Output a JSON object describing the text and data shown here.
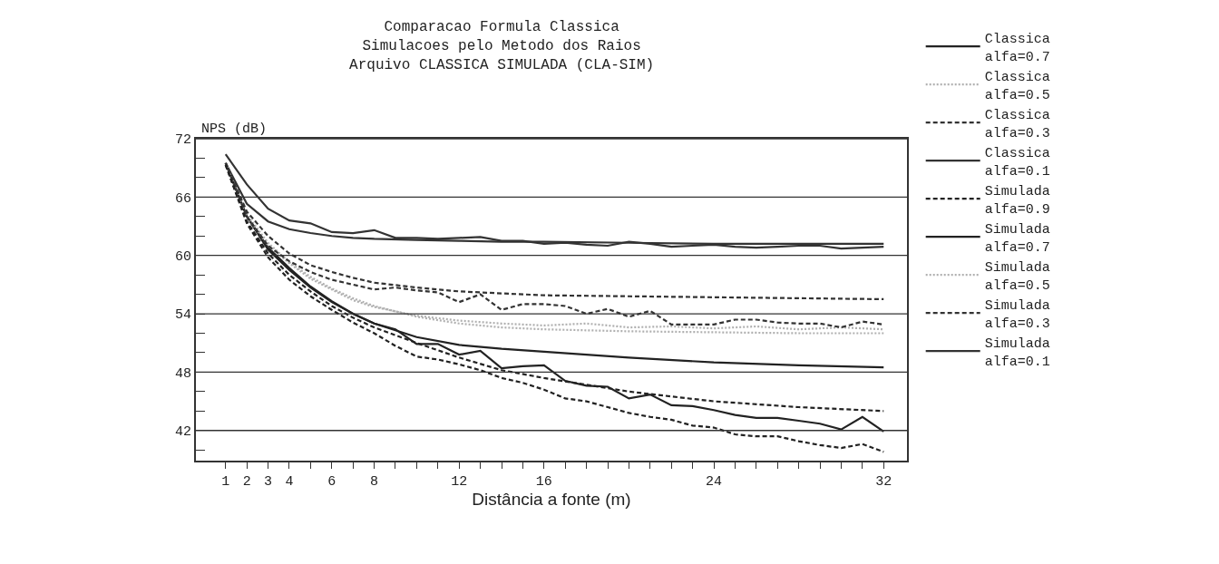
{
  "chart_data": {
    "type": "line",
    "title": "Comparacao Formula Classica\nSimulacoes pelo Metodo dos Raios\nArquivo CLASSICA SIMULADA (CLA-SIM)",
    "xlabel": "Distância a fonte (m)",
    "ylabel": "NPS (dB)",
    "xlim": [
      -0.4,
      33.1
    ],
    "ylim": [
      38.9,
      72
    ],
    "xticks": [
      1,
      2,
      3,
      4,
      {
        "value": 5,
        "label": null
      },
      6,
      {
        "value": 7,
        "label": null
      },
      8,
      {
        "value": 9,
        "label": null
      },
      {
        "value": 10,
        "label": null
      },
      {
        "value": 11,
        "label": null
      },
      12,
      {
        "value": 13,
        "label": null
      },
      {
        "value": 14,
        "label": null
      },
      {
        "value": 15,
        "label": null
      },
      16,
      {
        "value": 17,
        "label": null
      },
      {
        "value": 18,
        "label": null
      },
      {
        "value": 19,
        "label": null
      },
      {
        "value": 20,
        "label": null
      },
      {
        "value": 21,
        "label": null
      },
      {
        "value": 22,
        "label": null
      },
      {
        "value": 23,
        "label": null
      },
      24,
      {
        "value": 25,
        "label": null
      },
      {
        "value": 26,
        "label": null
      },
      {
        "value": 27,
        "label": null
      },
      {
        "value": 28,
        "label": null
      },
      {
        "value": 29,
        "label": null
      },
      {
        "value": 30,
        "label": null
      },
      {
        "value": 31,
        "label": null
      },
      32
    ],
    "yticks": [
      {
        "value": 40,
        "label": null
      },
      42,
      {
        "value": 44,
        "label": null
      },
      {
        "value": 46,
        "label": null
      },
      48,
      {
        "value": 50,
        "label": null
      },
      {
        "value": 52,
        "label": null
      },
      54,
      {
        "value": 56,
        "label": null
      },
      {
        "value": 58,
        "label": null
      },
      60,
      {
        "value": 62,
        "label": null
      },
      {
        "value": 64,
        "label": null
      },
      66,
      {
        "value": 68,
        "label": null
      },
      {
        "value": 70,
        "label": null
      },
      72
    ],
    "grid": "y",
    "legend": "right",
    "marker": "none",
    "series": [
      {
        "name": "Classica\nalfa=0.7",
        "color": "#222222",
        "line_style": "solid",
        "x": [
          1,
          2,
          3,
          4,
          5,
          6,
          7,
          8,
          10,
          12,
          14,
          16,
          20,
          24,
          28,
          32
        ],
        "values": [
          69.5,
          64.0,
          60.8,
          58.7,
          56.8,
          55.3,
          54.0,
          53.0,
          51.6,
          50.8,
          50.4,
          50.1,
          49.5,
          49.0,
          48.7,
          48.5
        ]
      },
      {
        "name": "Classica\nalfa=0.5",
        "color": "#b0b0b0",
        "line_style": "dotted",
        "x": [
          1,
          2,
          3,
          4,
          5,
          6,
          7,
          8,
          10,
          12,
          14,
          16,
          20,
          24,
          28,
          32
        ],
        "values": [
          69.5,
          64.2,
          61.3,
          59.3,
          57.8,
          56.6,
          55.6,
          54.8,
          53.7,
          53.0,
          52.6,
          52.4,
          52.2,
          52.1,
          52.0,
          52.0
        ]
      },
      {
        "name": "Classica\nalfa=0.3",
        "color": "#333333",
        "line_style": "dashed",
        "x": [
          1,
          2,
          3,
          4,
          5,
          6,
          7,
          8,
          10,
          12,
          14,
          16,
          20,
          24,
          28,
          32
        ],
        "values": [
          69.5,
          64.5,
          62.0,
          60.2,
          59.0,
          58.3,
          57.7,
          57.2,
          56.7,
          56.3,
          56.1,
          55.9,
          55.8,
          55.7,
          55.6,
          55.5
        ]
      },
      {
        "name": "Classica\nalfa=0.1",
        "color": "#333333",
        "line_style": "solid",
        "x": [
          1,
          2,
          3,
          4,
          5,
          6,
          7,
          8,
          10,
          12,
          14,
          16,
          20,
          24,
          28,
          32
        ],
        "values": [
          69.5,
          65.3,
          63.5,
          62.7,
          62.3,
          62.0,
          61.8,
          61.7,
          61.6,
          61.5,
          61.4,
          61.4,
          61.3,
          61.2,
          61.2,
          61.2
        ]
      },
      {
        "name": "Simulada\nalfa=0.9",
        "color": "#222222",
        "line_style": "dashed",
        "x": [
          1,
          2,
          3,
          4,
          5,
          6,
          7,
          8,
          9,
          10,
          11,
          12,
          13,
          14,
          15,
          16,
          17,
          18,
          19,
          20,
          21,
          22,
          23,
          24,
          25,
          26,
          27,
          28,
          29,
          30,
          31,
          32
        ],
        "values": [
          69.3,
          63.3,
          59.8,
          57.5,
          55.8,
          54.4,
          53.1,
          52.0,
          50.7,
          49.6,
          49.3,
          48.8,
          48.2,
          47.4,
          46.9,
          46.2,
          45.3,
          45.0,
          44.4,
          43.8,
          43.4,
          43.1,
          42.5,
          42.3,
          41.6,
          41.4,
          41.4,
          40.9,
          40.5,
          40.2,
          40.6,
          39.8
        ]
      },
      {
        "name": "Simulada\nalfa=0.7",
        "color": "#222222",
        "line_style": "solid",
        "x": [
          1,
          2,
          3,
          4,
          5,
          6,
          7,
          8,
          9,
          10,
          11,
          12,
          13,
          14,
          15,
          16,
          17,
          18,
          19,
          20,
          21,
          22,
          23,
          24,
          25,
          26,
          27,
          28,
          29,
          30,
          31,
          32
        ],
        "values": [
          69.5,
          64.0,
          60.6,
          58.5,
          56.7,
          55.2,
          54.0,
          53.0,
          52.4,
          50.9,
          50.9,
          49.8,
          50.2,
          48.4,
          48.6,
          48.7,
          47.1,
          46.6,
          46.5,
          45.3,
          45.7,
          44.6,
          44.5,
          44.1,
          43.6,
          43.3,
          43.3,
          43.0,
          42.7,
          42.1,
          43.4,
          41.9
        ]
      },
      {
        "name": "Simulada\nalfa=0.5",
        "color": "#b0b0b0",
        "line_style": "dotted",
        "x": [
          1,
          2,
          3,
          4,
          5,
          6,
          7,
          8,
          10,
          12,
          14,
          16,
          18,
          20,
          22,
          24,
          26,
          28,
          30,
          32
        ],
        "values": [
          69.5,
          64.0,
          61.0,
          59.2,
          57.6,
          56.5,
          55.4,
          54.7,
          53.8,
          53.3,
          53.0,
          52.8,
          53.0,
          52.6,
          52.7,
          52.5,
          52.7,
          52.4,
          52.6,
          52.4
        ]
      },
      {
        "name": "Simulada\nalfa=0.3",
        "color": "#333333",
        "line_style": "dashed",
        "x": [
          1,
          2,
          3,
          4,
          5,
          6,
          7,
          8,
          9,
          10,
          11,
          12,
          13,
          14,
          15,
          16,
          17,
          18,
          19,
          20,
          21,
          22,
          23,
          24,
          25,
          26,
          27,
          28,
          29,
          30,
          31,
          32
        ],
        "values": [
          69.5,
          64.0,
          61.0,
          59.4,
          58.3,
          57.5,
          57.0,
          56.5,
          56.7,
          56.4,
          56.2,
          55.2,
          56.0,
          54.4,
          55.0,
          55.0,
          54.8,
          54.0,
          54.5,
          53.7,
          54.3,
          52.9,
          52.9,
          52.9,
          53.4,
          53.4,
          53.1,
          53.0,
          53.0,
          52.6,
          53.2,
          52.9
        ]
      },
      {
        "name": "Simulada\nalfa=0.1",
        "color": "#333333",
        "line_style": "solid",
        "x": [
          1,
          2,
          3,
          4,
          5,
          6,
          7,
          8,
          9,
          10,
          11,
          12,
          13,
          14,
          15,
          16,
          17,
          18,
          19,
          20,
          21,
          22,
          23,
          24,
          25,
          26,
          27,
          28,
          29,
          30,
          31,
          32
        ],
        "values": [
          70.4,
          67.3,
          64.8,
          63.6,
          63.3,
          62.4,
          62.3,
          62.6,
          61.8,
          61.8,
          61.7,
          61.8,
          61.9,
          61.5,
          61.5,
          61.2,
          61.3,
          61.1,
          61.0,
          61.4,
          61.2,
          60.9,
          61.0,
          61.1,
          60.9,
          60.8,
          60.9,
          61.0,
          61.0,
          60.7,
          60.8,
          60.9
        ]
      },
      {
        "color": "#222222",
        "line_style": "dashed",
        "x": [
          1,
          2,
          3,
          4,
          5,
          6,
          7,
          8,
          10,
          12,
          14,
          16,
          20,
          24,
          28,
          32
        ],
        "values": [
          69.3,
          63.5,
          60.2,
          58.0,
          56.3,
          54.8,
          53.6,
          52.6,
          51.0,
          49.5,
          48.2,
          47.4,
          46.0,
          45.0,
          44.4,
          44.0
        ]
      }
    ]
  }
}
